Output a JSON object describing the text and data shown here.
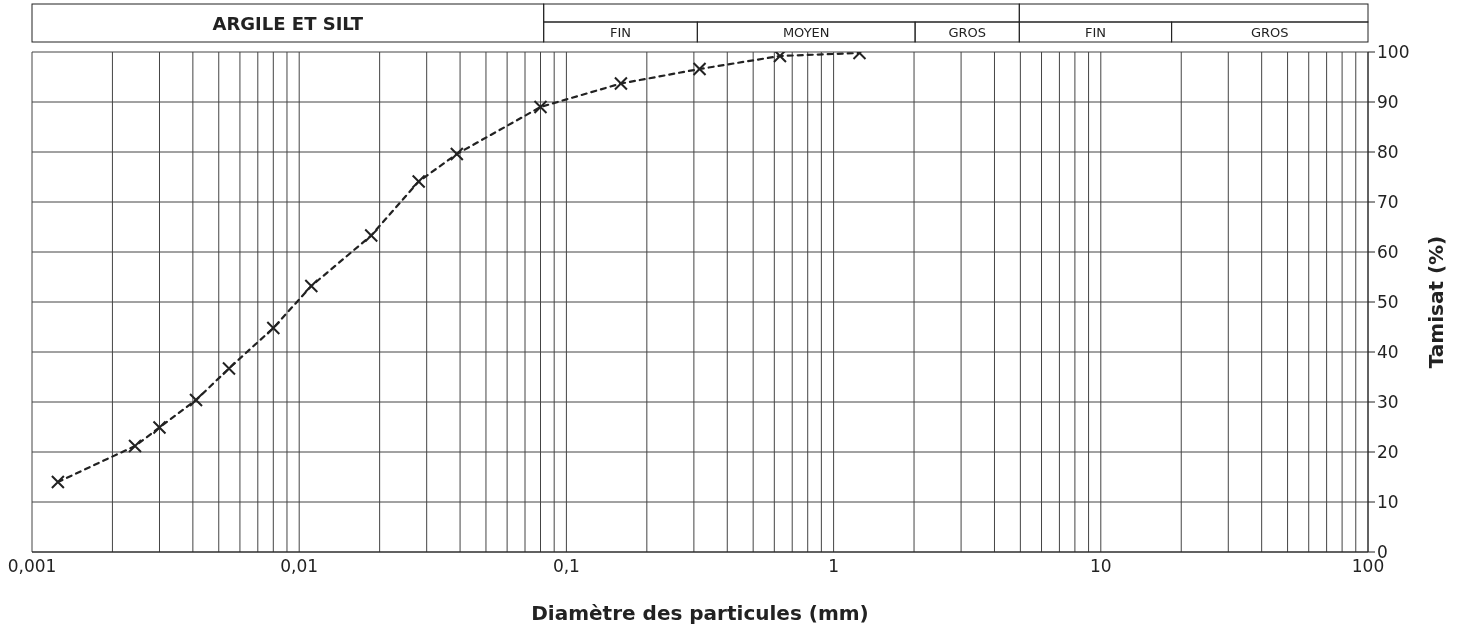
{
  "chart_data": {
    "type": "line",
    "xlabel": "Diamètre des particules (mm)",
    "ylabel": "Tamisat (%)",
    "x": [
      0.00125,
      0.00243,
      0.003,
      0.00411,
      0.00546,
      0.008,
      0.0111,
      0.0186,
      0.028,
      0.0389,
      0.08,
      0.16,
      0.315,
      0.63,
      1.25
    ],
    "values": [
      14.0,
      21.2,
      24.9,
      30.4,
      36.7,
      44.8,
      53.2,
      63.3,
      74.1,
      79.6,
      89.0,
      93.7,
      96.6,
      99.2,
      99.8
    ],
    "color": "#222222",
    "marker": "cross",
    "line_style": "dashed",
    "log": "x",
    "grid": true,
    "xlim": [
      0.001,
      100
    ],
    "xticks": [
      {
        "value": 0.001,
        "label": "0,001"
      },
      {
        "value": 0.002,
        "label": null
      },
      {
        "value": 0.003,
        "label": null
      },
      {
        "value": 0.004,
        "label": null
      },
      {
        "value": 0.005,
        "label": null
      },
      {
        "value": 0.006,
        "label": null
      },
      {
        "value": 0.007,
        "label": null
      },
      {
        "value": 0.008,
        "label": null
      },
      {
        "value": 0.009,
        "label": null
      },
      {
        "value": 0.01,
        "label": "0,01"
      },
      {
        "value": 0.02,
        "label": null
      },
      {
        "value": 0.03,
        "label": null
      },
      {
        "value": 0.04,
        "label": null
      },
      {
        "value": 0.05,
        "label": null
      },
      {
        "value": 0.06,
        "label": null
      },
      {
        "value": 0.07,
        "label": null
      },
      {
        "value": 0.08,
        "label": null
      },
      {
        "value": 0.09,
        "label": null
      },
      {
        "value": 0.1,
        "label": "0,1"
      },
      {
        "value": 0.2,
        "label": null
      },
      {
        "value": 0.3,
        "label": null
      },
      {
        "value": 0.4,
        "label": null
      },
      {
        "value": 0.5,
        "label": null
      },
      {
        "value": 0.6,
        "label": null
      },
      {
        "value": 0.7,
        "label": null
      },
      {
        "value": 0.8,
        "label": null
      },
      {
        "value": 0.9,
        "label": null
      },
      1,
      {
        "value": 2,
        "label": null
      },
      {
        "value": 3,
        "label": null
      },
      {
        "value": 4,
        "label": null
      },
      {
        "value": 5,
        "label": null
      },
      {
        "value": 6,
        "label": null
      },
      {
        "value": 7,
        "label": null
      },
      {
        "value": 8,
        "label": null
      },
      {
        "value": 9,
        "label": null
      },
      10,
      {
        "value": 20,
        "label": null
      },
      {
        "value": 30,
        "label": null
      },
      {
        "value": 40,
        "label": null
      },
      {
        "value": 50,
        "label": null
      },
      {
        "value": 60,
        "label": null
      },
      {
        "value": 70,
        "label": null
      },
      {
        "value": 80,
        "label": null
      },
      {
        "value": 90,
        "label": null
      },
      100
    ],
    "ylim": [
      0,
      100
    ],
    "yticks": [
      0,
      10,
      20,
      30,
      40,
      50,
      60,
      70,
      80,
      90,
      100
    ],
    "annotations": [
      "ARGILE ET SILT",
      "FIN",
      "MOYEN",
      "GROS",
      "FIN",
      "GROS"
    ]
  }
}
